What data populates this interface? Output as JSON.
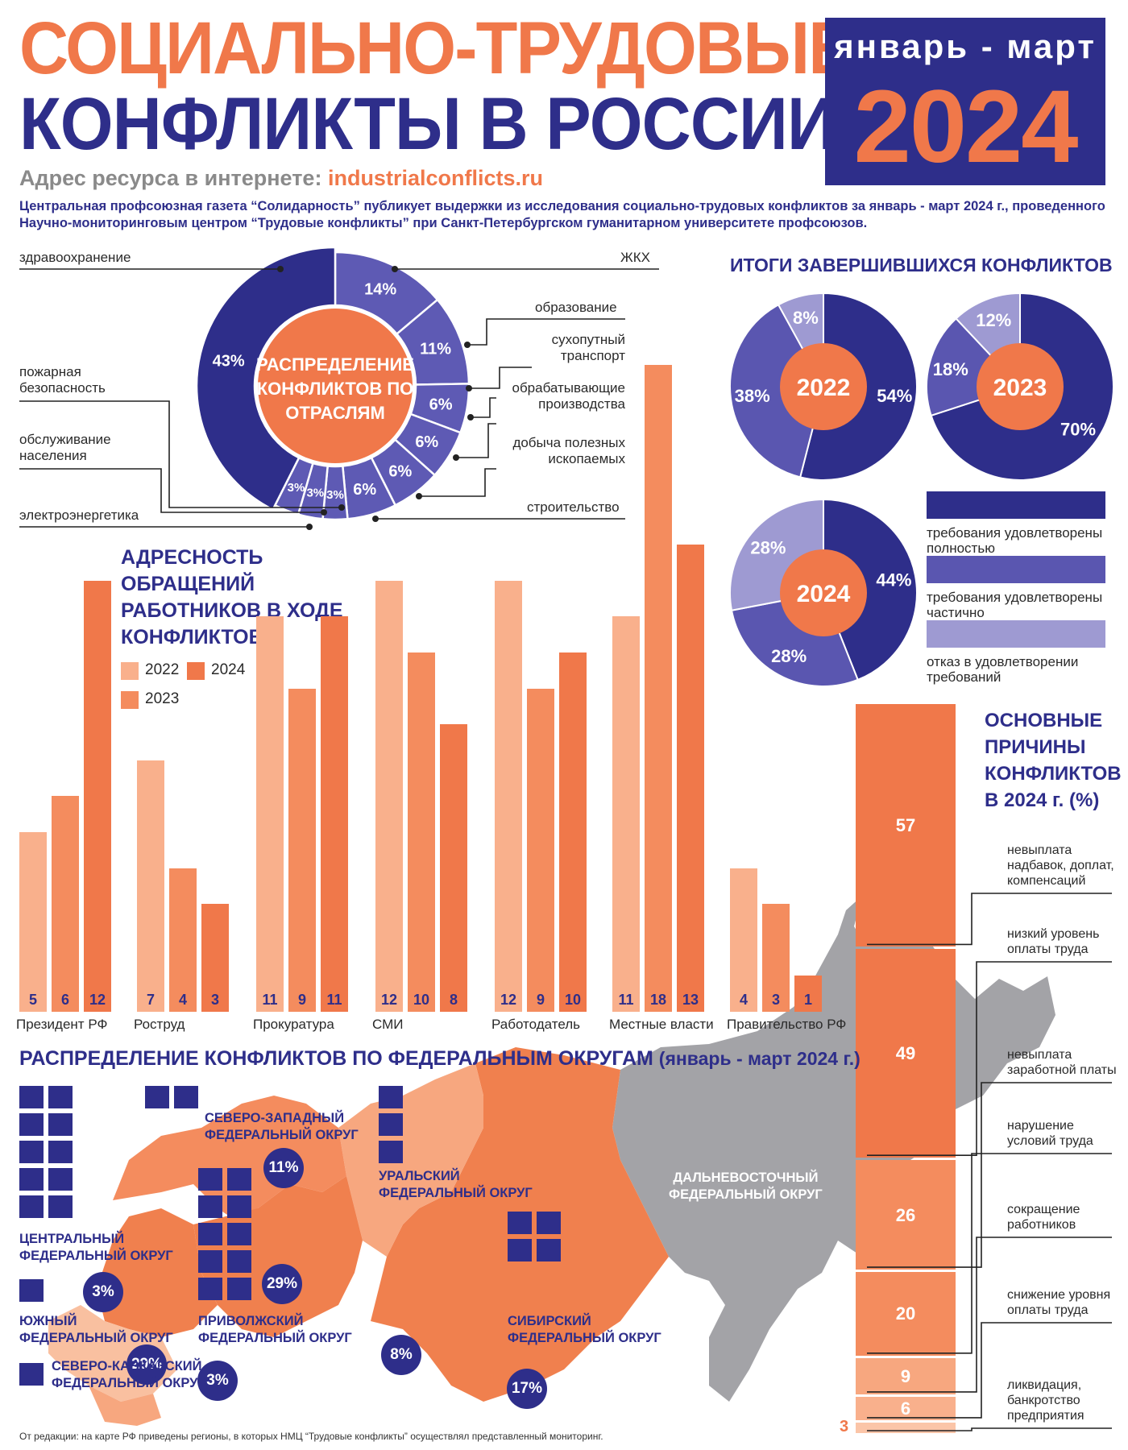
{
  "header": {
    "title_line1": "СОЦИАЛЬНО-ТРУДОВЫЕ",
    "title_line2": "КОНФЛИКТЫ В РОССИИ",
    "period": "январь - март",
    "year": "2024",
    "url_label": "Адрес ресурса в интернете:",
    "url_value": "industrialconflicts.ru",
    "intro": "Центральная профсоюзная газета “Солидарность” публикует выдержки из исследования социально-трудовых конфликтов за январь - март 2024 г., проведенного Научно-мониторинговым центром “Трудовые конфликты” при Санкт-Петербургском гуманитарном университете профсоюзов."
  },
  "colors": {
    "navy": "#2e2e8a",
    "orange": "#f0784a",
    "mid_purple": "#5a56b0",
    "light_purple": "#9e9ad2",
    "peach": "#f7a77f",
    "salmon": "#f48c5e",
    "gray": "#a3a3a7"
  },
  "chart_data": [
    {
      "type": "pie",
      "title": "РАСПРЕДЕЛЕНИЕ КОНФЛИКТОВ ПО ОТРАСЛЯМ",
      "slices": [
        {
          "label": "ЖКХ",
          "value": 14,
          "text": "14%"
        },
        {
          "label": "образование",
          "value": 11,
          "text": "11%"
        },
        {
          "label": "сухопутный транспорт",
          "value": 6,
          "text": "6%"
        },
        {
          "label": "обрабатывающие производства",
          "value": 6,
          "text": "6%"
        },
        {
          "label": "добыча полезных ископаемых",
          "value": 6,
          "text": "6%"
        },
        {
          "label": "строительство",
          "value": 6,
          "text": "6%"
        },
        {
          "label": "электроэнергетика",
          "value": 3,
          "text": "3%"
        },
        {
          "label": "обслуживание населения",
          "value": 3,
          "text": "3%"
        },
        {
          "label": "пожарная безопасность",
          "value": 3,
          "text": "3%"
        },
        {
          "label": "здравоохранение",
          "value": 43,
          "text": "43%"
        }
      ]
    },
    {
      "type": "pie",
      "title": "ИТОГИ ЗАВЕРШИВШИХСЯ КОНФЛИКТОВ",
      "legend": [
        "требования удовлетворены полностью",
        "требования удовлетворены частично",
        "отказ в удовлетворении требований"
      ],
      "pies": [
        {
          "year": "2022",
          "values": [
            54,
            38,
            8
          ],
          "texts": [
            "54%",
            "38%",
            "8%"
          ]
        },
        {
          "year": "2023",
          "values": [
            70,
            18,
            12
          ],
          "texts": [
            "70%",
            "18%",
            "12%"
          ]
        },
        {
          "year": "2024",
          "values": [
            44,
            28,
            28
          ],
          "texts": [
            "44%",
            "28%",
            "28%"
          ]
        }
      ]
    },
    {
      "type": "bar",
      "title": "АДРЕСНОСТЬ ОБРАЩЕНИЙ РАБОТНИКОВ В ХОДЕ КОНФЛИКТОВ",
      "categories": [
        "Президент РФ",
        "Роструд",
        "Прокуратура",
        "СМИ",
        "Работодатель",
        "Местные власти",
        "Правительство РФ"
      ],
      "series": [
        {
          "name": "2022",
          "values": [
            5,
            7,
            11,
            12,
            12,
            11,
            4
          ]
        },
        {
          "name": "2023",
          "values": [
            6,
            4,
            9,
            10,
            9,
            18,
            3
          ]
        },
        {
          "name": "2024",
          "values": [
            12,
            3,
            11,
            8,
            10,
            13,
            1
          ]
        }
      ]
    },
    {
      "type": "bar",
      "title": "ОСНОВНЫЕ ПРИЧИНЫ КОНФЛИКТОВ В 2024 г. (%)",
      "categories": [
        "невыплата надбавок, доплат, компенсаций",
        "низкий уровень оплаты труда",
        "невыплата заработной платы",
        "нарушение условий труда",
        "сокращение работников",
        "снижение уровня оплаты труда",
        "ликвидация, банкротство предприятия"
      ],
      "values": [
        57,
        49,
        26,
        20,
        9,
        6,
        3
      ]
    }
  ],
  "labels": {
    "legend_years": [
      "2022",
      "2024",
      "2023"
    ],
    "reason_labels": [
      [
        "невыплата",
        "надбавок, доплат,",
        "компенсаций"
      ],
      [
        "низкий уровень",
        "оплаты труда"
      ],
      [
        "невыплата",
        "заработной платы"
      ],
      [
        "нарушение",
        "условий труда"
      ],
      [
        "сокращение",
        "работников"
      ],
      [
        "снижение уровня",
        "оплаты труда"
      ],
      [
        "ликвидация,",
        "банкротство",
        "предприятия"
      ]
    ],
    "outcomes_legend": [
      [
        "требования удовлетворены",
        "полностью"
      ],
      [
        "требования удовлетворены",
        "частично"
      ],
      [
        "отказ в удовлетворении",
        "требований"
      ]
    ],
    "industry_lines": {
      "zdrav": "здравоохранение",
      "zhkh": "ЖКХ",
      "obraz": "образование",
      "transport": [
        "сухопутный",
        "транспорт"
      ],
      "obrab": [
        "обрабатывающие",
        "производства"
      ],
      "dobycha": [
        "добыча полезных",
        "ископаемых"
      ],
      "stroit": "строительство",
      "pozhar": [
        "пожарная",
        "безопасность"
      ],
      "obsl": [
        "обслуживание",
        "населения"
      ],
      "elektro": "электроэнергетика"
    }
  },
  "federal": {
    "title": "РАСПРЕДЕЛЕНИЕ КОНФЛИКТОВ ПО ФЕДЕРАЛЬНЫМ ОКРУГАМ",
    "subtitle": "(январь - март 2024 г.)",
    "okrugs": [
      {
        "name": [
          "ЦЕНТРАЛЬНЫЙ",
          "ФЕДЕРАЛЬНЫЙ ОКРУГ"
        ],
        "pct": "29%"
      },
      {
        "name": [
          "СЕВЕРО-ЗАПАДНЫЙ",
          "ФЕДЕРАЛЬНЫЙ ОКРУГ"
        ],
        "pct": "11%"
      },
      {
        "name": [
          "УРАЛЬСКИЙ",
          "ФЕДЕРАЛЬНЫЙ ОКРУГ"
        ],
        "pct": "8%"
      },
      {
        "name": [
          "ПРИВОЛЖСКИЙ",
          "ФЕДЕРАЛЬНЫЙ ОКРУГ"
        ],
        "pct": "29%"
      },
      {
        "name": [
          "ЮЖНЫЙ",
          "ФЕДЕРАЛЬНЫЙ ОКРУГ"
        ],
        "pct": "3%"
      },
      {
        "name": [
          "СЕВЕРО-КАВКАЗСКИЙ",
          "ФЕДЕРАЛЬНЫЙ ОКРУГ"
        ],
        "pct": "3%"
      },
      {
        "name": [
          "СИБИРСКИЙ",
          "ФЕДЕРАЛЬНЫЙ ОКРУГ"
        ],
        "pct": "17%"
      },
      {
        "name": [
          "ДАЛЬНЕВОСТОЧНЫЙ",
          "ФЕДЕРАЛЬНЫЙ ОКРУГ"
        ],
        "pct": ""
      }
    ],
    "footnote": "От редакции: на карте РФ приведены регионы, в которых НМЦ “Трудовые конфликты” осуществлял представленный мониторинг."
  }
}
